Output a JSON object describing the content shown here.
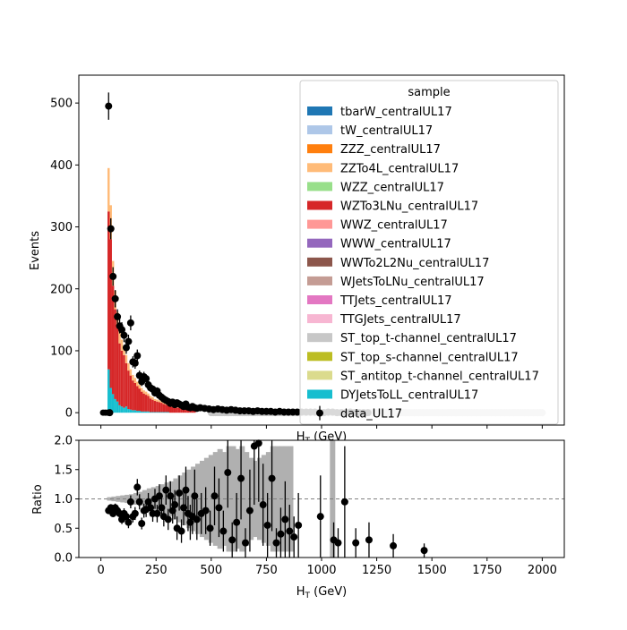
{
  "figure": {
    "ylabel_top": "Events",
    "xlabel_top": "H",
    "xlabel_top_sub": "T",
    "xlabel_top_unit": " (GeV)",
    "ylabel_bottom": "Ratio",
    "xlabel_bottom": "H",
    "xlabel_bottom_sub": "T",
    "xlabel_bottom_unit": " (GeV)"
  },
  "legend": {
    "title": "sample",
    "entries": [
      {
        "name": "tbarW_centralUL17",
        "color": "#1f77b4"
      },
      {
        "name": "tW_centralUL17",
        "color": "#aec7e8"
      },
      {
        "name": "ZZZ_centralUL17",
        "color": "#ff7f0e"
      },
      {
        "name": "ZZTo4L_centralUL17",
        "color": "#ffbb78"
      },
      {
        "name": "WZZ_centralUL17",
        "color": "#98df8a"
      },
      {
        "name": "WZTo3LNu_centralUL17",
        "color": "#d62728"
      },
      {
        "name": "WWZ_centralUL17",
        "color": "#ff9896"
      },
      {
        "name": "WWW_centralUL17",
        "color": "#9467bd"
      },
      {
        "name": "WWTo2L2Nu_centralUL17",
        "color": "#8c564b"
      },
      {
        "name": "WJetsToLNu_centralUL17",
        "color": "#c49c94"
      },
      {
        "name": "TTJets_centralUL17",
        "color": "#e377c2"
      },
      {
        "name": "TTGJets_centralUL17",
        "color": "#f7b6d2"
      },
      {
        "name": "ST_top_t-channel_centralUL17",
        "color": "#c7c7c7"
      },
      {
        "name": "ST_top_s-channel_centralUL17",
        "color": "#bcbd22"
      },
      {
        "name": "ST_antitop_t-channel_centralUL17",
        "color": "#dbdb8d"
      },
      {
        "name": "DYJetsToLL_centralUL17",
        "color": "#17becf"
      }
    ],
    "data_entry": "data_UL17"
  },
  "chart_data": [
    {
      "type": "bar",
      "panel": "top",
      "stacked": true,
      "xlabel": "H_T (GeV)",
      "ylabel": "Events",
      "xlim": [
        -100,
        2100
      ],
      "ylim": [
        -20,
        545
      ],
      "xticks": [
        0,
        250,
        500,
        750,
        1000,
        1250,
        1500,
        1750,
        2000
      ],
      "yticks": [
        0,
        100,
        200,
        300,
        400,
        500
      ],
      "ytick_labels": [
        "0",
        "100",
        "200",
        "300",
        "400",
        "500"
      ],
      "bin_edges": [
        30,
        40,
        50,
        60,
        70,
        80,
        90,
        100,
        110,
        120,
        130,
        140,
        150,
        160,
        170,
        180,
        190,
        200,
        210,
        220,
        230,
        240,
        250,
        260,
        270,
        280,
        290,
        300,
        310,
        320,
        330,
        340,
        350,
        360,
        370,
        380,
        390,
        400,
        410,
        420,
        430
      ],
      "series": [
        {
          "name": "DYJetsToLL_centralUL17",
          "values": [
            70,
            40,
            30,
            22,
            18,
            12,
            10,
            8,
            10,
            6,
            5,
            4,
            4,
            3,
            3,
            2,
            2,
            2,
            2,
            1,
            1,
            1,
            1,
            1,
            1,
            1,
            1,
            1,
            0,
            0,
            0,
            0,
            0,
            0,
            0,
            0,
            0,
            0,
            0,
            0
          ]
        },
        {
          "name": "WZTo3LNu_centralUL17",
          "values": [
            255,
            240,
            175,
            145,
            120,
            100,
            90,
            85,
            70,
            62,
            55,
            48,
            44,
            40,
            36,
            32,
            29,
            27,
            25,
            22,
            20,
            18,
            17,
            16,
            15,
            13,
            12,
            11,
            10,
            9,
            9,
            8,
            8,
            7,
            7,
            6,
            6,
            5,
            5,
            5
          ]
        },
        {
          "name": "ZZTo4L_centralUL17",
          "values": [
            70,
            55,
            40,
            30,
            25,
            20,
            18,
            15,
            13,
            12,
            10,
            9,
            8,
            7,
            6,
            6,
            5,
            5,
            4,
            4,
            4,
            3,
            3,
            3,
            3,
            2,
            2,
            2,
            2,
            2,
            2,
            1,
            1,
            1,
            1,
            1,
            1,
            1,
            1,
            1
          ]
        }
      ],
      "data_points": {
        "name": "data_UL17",
        "x": [
          35,
          40,
          45,
          55,
          65,
          75,
          85,
          95,
          105,
          115,
          125,
          135,
          145,
          155,
          165,
          175,
          185,
          195,
          205,
          215,
          225,
          235,
          245,
          255,
          265,
          275,
          285,
          295,
          305,
          315,
          325,
          335,
          345,
          355,
          365,
          375,
          385,
          395,
          405,
          415,
          425,
          435,
          450,
          470,
          490,
          510,
          530,
          550,
          570,
          590,
          610,
          630,
          650,
          670,
          690,
          710,
          730,
          750,
          770,
          790,
          810,
          830,
          850,
          870,
          890,
          910,
          930,
          950,
          970,
          990,
          1010,
          1030,
          1050,
          1070,
          1090,
          1110,
          1130,
          1150,
          1170,
          1190,
          1210
        ],
        "y": [
          495,
          0,
          297,
          220,
          184,
          155,
          140,
          134,
          125,
          105,
          115,
          145,
          82,
          80,
          92,
          60,
          50,
          58,
          55,
          45,
          40,
          38,
          32,
          35,
          28,
          25,
          22,
          20,
          18,
          15,
          17,
          13,
          16,
          14,
          12,
          10,
          14,
          9,
          8,
          10,
          8,
          7,
          8,
          7,
          6,
          5,
          6,
          5,
          4,
          5,
          4,
          3,
          3,
          3,
          2,
          3,
          2,
          2,
          2,
          1,
          2,
          1,
          1,
          1,
          1,
          1,
          1,
          1,
          1,
          0,
          0,
          1,
          1,
          0,
          0,
          0,
          1,
          0,
          0,
          0,
          0
        ],
        "yerr": [
          22,
          0,
          17,
          15,
          14,
          12,
          12,
          12,
          11,
          10,
          11,
          12,
          9,
          9,
          10,
          8,
          7,
          8,
          7,
          7,
          6,
          6,
          6,
          6,
          5,
          5,
          5,
          4,
          4,
          4,
          4,
          4,
          4,
          4,
          3,
          3,
          4,
          3,
          3,
          3,
          3,
          3,
          3,
          3,
          2,
          2,
          2,
          2,
          2,
          2,
          2,
          2,
          2,
          2,
          1,
          2,
          1,
          1,
          1,
          1,
          1,
          1,
          1,
          1,
          1,
          1,
          1,
          1,
          1,
          0,
          0,
          1,
          1,
          0,
          0,
          0,
          1,
          0,
          0,
          0,
          0
        ]
      },
      "zero_markers_x": [
        10,
        20,
        30
      ],
      "gray_band_x_start": 500,
      "gray_band_x_end": 2000
    },
    {
      "type": "scatter",
      "panel": "bottom",
      "xlabel": "H_T (GeV)",
      "ylabel": "Ratio",
      "xlim": [
        -100,
        2100
      ],
      "ylim": [
        0,
        2.0
      ],
      "xticks": [
        0,
        250,
        500,
        750,
        1000,
        1250,
        1500,
        1750,
        2000
      ],
      "xtick_labels": [
        "0",
        "250",
        "500",
        "750",
        "1000",
        "1250",
        "1500",
        "1750",
        "2000"
      ],
      "yticks": [
        0.0,
        0.5,
        1.0,
        1.5,
        2.0
      ],
      "ytick_labels": [
        "0.0",
        "0.5",
        "1.0",
        "1.5",
        "2.0"
      ],
      "reference_line": 1.0,
      "uncertainty_band": {
        "x": [
          40,
          60,
          80,
          100,
          120,
          140,
          160,
          180,
          200,
          220,
          240,
          260,
          280,
          300,
          320,
          340,
          360,
          380,
          400,
          420,
          440,
          460,
          480,
          500,
          520,
          540,
          560,
          580,
          600,
          620,
          640,
          660,
          680,
          700,
          720,
          740,
          760,
          780,
          800,
          820,
          840,
          860,
          1050
        ],
        "half_width": [
          0.03,
          0.04,
          0.05,
          0.06,
          0.07,
          0.08,
          0.1,
          0.12,
          0.15,
          0.18,
          0.2,
          0.22,
          0.25,
          0.28,
          0.3,
          0.35,
          0.4,
          0.45,
          0.5,
          0.55,
          0.6,
          0.65,
          0.7,
          0.75,
          0.8,
          0.85,
          0.8,
          0.9,
          0.9,
          0.85,
          0.9,
          0.8,
          0.7,
          0.65,
          0.7,
          0.75,
          0.8,
          0.9,
          0.9,
          0.9,
          0.9,
          0.9,
          1.0
        ]
      },
      "x": [
        35,
        45,
        55,
        65,
        75,
        85,
        95,
        105,
        115,
        125,
        135,
        145,
        155,
        165,
        175,
        185,
        195,
        205,
        215,
        225,
        235,
        245,
        255,
        265,
        275,
        285,
        295,
        305,
        315,
        325,
        335,
        345,
        355,
        365,
        375,
        385,
        395,
        405,
        415,
        425,
        435,
        455,
        475,
        495,
        515,
        535,
        555,
        575,
        595,
        615,
        635,
        655,
        675,
        695,
        715,
        735,
        755,
        775,
        795,
        815,
        835,
        855,
        875,
        895,
        995,
        1055,
        1075,
        1105,
        1155,
        1215,
        1325,
        1465
      ],
      "y": [
        0.8,
        0.85,
        0.75,
        0.85,
        0.8,
        0.75,
        0.65,
        0.75,
        0.7,
        0.6,
        0.95,
        0.7,
        0.75,
        1.2,
        0.95,
        0.58,
        0.8,
        0.82,
        0.95,
        0.85,
        0.75,
        1.0,
        0.75,
        1.05,
        0.85,
        0.7,
        1.15,
        0.65,
        1.05,
        0.8,
        0.9,
        0.5,
        1.1,
        0.45,
        0.85,
        1.15,
        0.75,
        0.6,
        0.7,
        1.05,
        0.65,
        0.75,
        0.8,
        0.5,
        1.05,
        0.85,
        0.45,
        1.45,
        0.3,
        0.6,
        1.35,
        0.25,
        0.8,
        1.9,
        1.95,
        0.9,
        0.55,
        1.35,
        0.25,
        0.4,
        0.65,
        0.45,
        0.35,
        0.55,
        0.7,
        0.3,
        0.25,
        0.95,
        0.25,
        0.3,
        0.2,
        0.12
      ],
      "yerr": [
        0.05,
        0.06,
        0.06,
        0.07,
        0.07,
        0.08,
        0.08,
        0.09,
        0.09,
        0.1,
        0.11,
        0.1,
        0.11,
        0.14,
        0.13,
        0.1,
        0.12,
        0.13,
        0.15,
        0.15,
        0.14,
        0.17,
        0.15,
        0.2,
        0.18,
        0.17,
        0.25,
        0.18,
        0.25,
        0.22,
        0.25,
        0.2,
        0.3,
        0.2,
        0.3,
        0.4,
        0.3,
        0.3,
        0.3,
        0.45,
        0.35,
        0.35,
        0.4,
        0.3,
        0.5,
        0.5,
        0.35,
        0.6,
        0.3,
        0.5,
        0.7,
        0.25,
        0.7,
        1.0,
        1.0,
        0.7,
        0.55,
        0.9,
        0.25,
        0.45,
        0.65,
        0.45,
        0.35,
        0.55,
        0.7,
        0.3,
        0.25,
        0.95,
        0.25,
        0.3,
        0.2,
        0.12
      ]
    }
  ]
}
